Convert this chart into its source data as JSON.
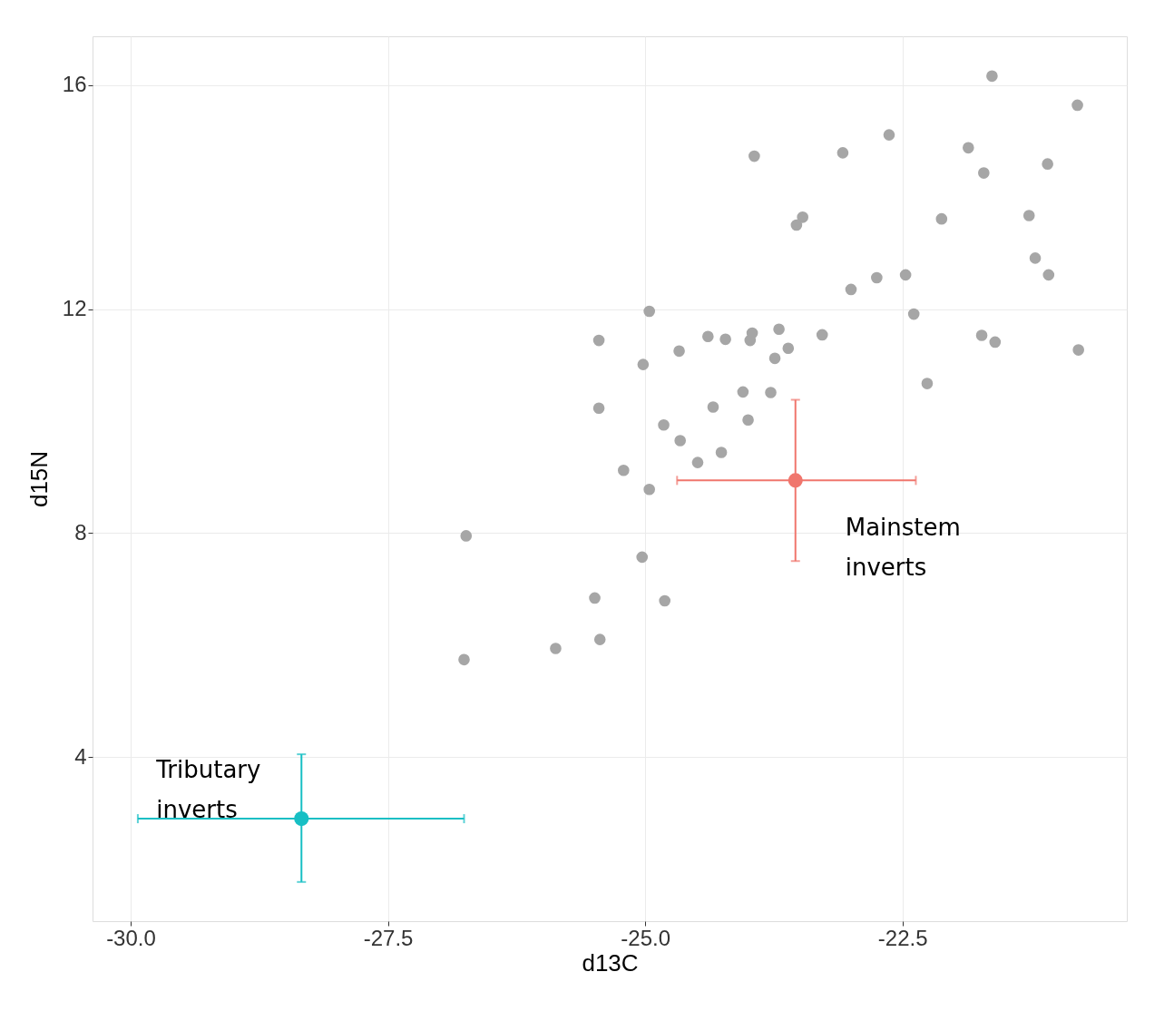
{
  "chart_data": {
    "type": "scatter",
    "xlabel": "d13C",
    "ylabel": "d15N",
    "xlim": [
      -30.37,
      -20.32
    ],
    "ylim": [
      1.07,
      16.87
    ],
    "xticks": [
      {
        "value": -30,
        "label": "-30.0"
      },
      -27.5,
      {
        "value": -25,
        "label": "-25.0"
      },
      -22.5
    ],
    "yticks": [
      4,
      8,
      12,
      16
    ],
    "grid": true,
    "marker": "circle",
    "annotations": [
      {
        "text": "Mainstem\ninverts",
        "x": -23.54,
        "y": 8.94
      },
      {
        "text": "Tributary\ninverts",
        "x": -28.34,
        "y": 2.9
      }
    ],
    "series": [
      {
        "color": "#a6a6a6",
        "x": [
          -21.63,
          -20.8,
          -22.63,
          -21.86,
          -23.08,
          -23.94,
          -21.71,
          -21.09,
          -23.47,
          -23.53,
          -22.12,
          -21.27,
          -21.21,
          -21.08,
          -22.75,
          -23.0,
          -22.47,
          -24.96,
          -22.39,
          -25.45,
          -24.39,
          -24.22,
          -23.96,
          -23.98,
          -23.7,
          -23.28,
          -23.61,
          -23.74,
          -24.67,
          -25.02,
          -21.73,
          -21.6,
          -20.79,
          -24.05,
          -23.78,
          -24.34,
          -24.0,
          -22.26,
          -25.45,
          -24.82,
          -24.66,
          -24.49,
          -24.26,
          -25.21,
          -24.96,
          -26.74,
          -25.03,
          -25.49,
          -24.81,
          -25.44,
          -25.87,
          -26.76
        ],
        "values": [
          16.16,
          15.64,
          15.11,
          14.88,
          14.79,
          14.73,
          14.43,
          14.59,
          13.64,
          13.5,
          13.61,
          13.67,
          12.91,
          12.61,
          12.56,
          12.35,
          12.61,
          11.96,
          11.91,
          11.44,
          11.51,
          11.46,
          11.57,
          11.44,
          11.64,
          11.54,
          11.3,
          11.12,
          11.25,
          11.01,
          11.53,
          11.41,
          11.27,
          10.52,
          10.51,
          10.25,
          10.02,
          10.67,
          10.23,
          9.93,
          9.65,
          9.26,
          9.44,
          9.12,
          8.78,
          7.95,
          7.57,
          6.84,
          6.79,
          6.1,
          5.94,
          5.74
        ]
      },
      {
        "color": "#f0766d",
        "x": [
          -23.54
        ],
        "values": [
          8.94
        ],
        "errors": [
          [
            7.5,
            10.38
          ]
        ],
        "xerrors": [
          [
            -24.69,
            -22.37
          ]
        ]
      },
      {
        "color": "#17bfc4",
        "x": [
          -28.34
        ],
        "values": [
          2.9
        ],
        "errors": [
          [
            1.77,
            4.05
          ]
        ],
        "xerrors": [
          [
            -29.93,
            -26.76
          ]
        ]
      }
    ]
  }
}
